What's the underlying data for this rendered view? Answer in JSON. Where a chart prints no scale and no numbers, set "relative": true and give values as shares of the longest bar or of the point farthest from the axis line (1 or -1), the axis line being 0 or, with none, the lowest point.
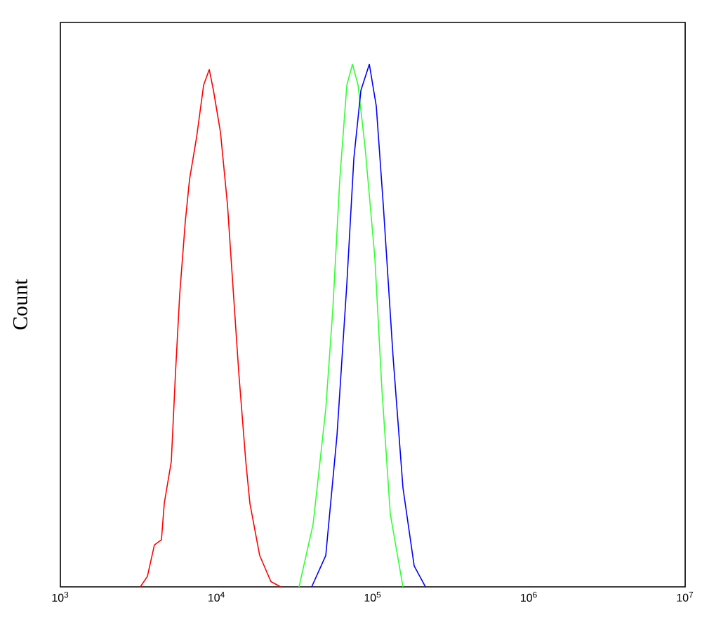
{
  "chart_data": {
    "type": "line",
    "ylabel": "Count",
    "relative": true,
    "log": "x",
    "xlim": [
      1000,
      10000000
    ],
    "xticks": [
      {
        "value": 1000,
        "label": "10$^{3}$"
      },
      {
        "value": 10000,
        "label": "10$^{4}$"
      },
      {
        "value": 100000,
        "label": "10$^{5}$"
      },
      {
        "value": 1000000,
        "label": "10$^{6}$"
      },
      {
        "value": 10000000,
        "label": "10$^{7}$"
      }
    ],
    "series": [
      {
        "color": "#ff0000",
        "x": [
          3251,
          3606,
          3999,
          4436,
          4625,
          5130,
          5458,
          5808,
          6310,
          6714,
          7447,
          8260,
          8977,
          9550,
          10590,
          11750,
          12500,
          13870,
          15380,
          16340,
          18880,
          22280,
          25750
        ],
        "values": [
          0,
          0.02,
          0.08,
          0.09,
          0.16,
          0.24,
          0.41,
          0.56,
          0.7,
          0.78,
          0.86,
          0.96,
          0.99,
          0.95,
          0.87,
          0.73,
          0.61,
          0.41,
          0.24,
          0.16,
          0.06,
          0.01,
          0
        ]
      },
      {
        "color": "#33ff33",
        "x": [
          33730,
          41500,
          50000,
          55460,
          61500,
          68230,
          74130,
          80530,
          89340,
          103100,
          114300,
          129400,
          156000
        ],
        "values": [
          0,
          0.12,
          0.34,
          0.53,
          0.78,
          0.96,
          1,
          0.96,
          0.84,
          0.63,
          0.38,
          0.14,
          0
        ]
      },
      {
        "color": "#0000ff",
        "x": [
          40640,
          50000,
          59020,
          68230,
          75680,
          83950,
          95060,
          105300,
          116800,
          134900,
          156000,
          184100,
          217300
        ],
        "values": [
          0,
          0.06,
          0.29,
          0.58,
          0.82,
          0.95,
          1,
          0.92,
          0.73,
          0.44,
          0.19,
          0.04,
          0
        ]
      }
    ]
  }
}
